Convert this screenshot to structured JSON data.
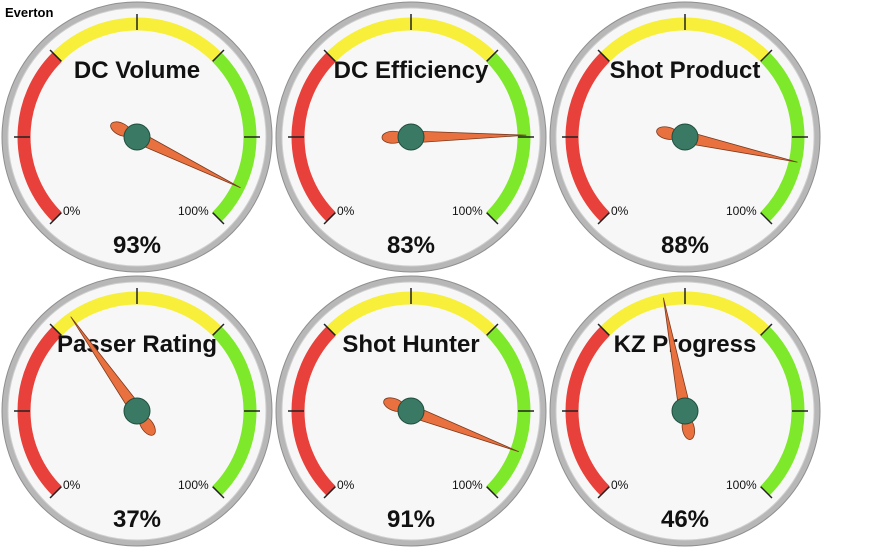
{
  "header": {
    "team": "Everton"
  },
  "chart_data": [
    {
      "type": "gauge",
      "title": "DC Volume",
      "value": 93,
      "value_label": "93%",
      "min_label": "0%",
      "max_label": "100%"
    },
    {
      "type": "gauge",
      "title": "DC Efficiency",
      "value": 83,
      "value_label": "83%",
      "min_label": "0%",
      "max_label": "100%"
    },
    {
      "type": "gauge",
      "title": "Shot Product",
      "value": 88,
      "value_label": "88%",
      "min_label": "0%",
      "max_label": "100%"
    },
    {
      "type": "gauge",
      "title": "Passer Rating",
      "value": 37,
      "value_label": "37%",
      "min_label": "0%",
      "max_label": "100%"
    },
    {
      "type": "gauge",
      "title": "Shot Hunter",
      "value": 91,
      "value_label": "91%",
      "min_label": "0%",
      "max_label": "100%"
    },
    {
      "type": "gauge",
      "title": "KZ Progress",
      "value": 46,
      "value_label": "46%",
      "min_label": "0%",
      "max_label": "100%"
    }
  ],
  "colors": {
    "band_low": "#e8403a",
    "band_mid": "#f7ef3a",
    "band_high": "#7ee82a",
    "needle": "#e8713f",
    "hub": "#3a7a65",
    "face": "#f7f7f7",
    "rim": "#b7b7b7"
  }
}
